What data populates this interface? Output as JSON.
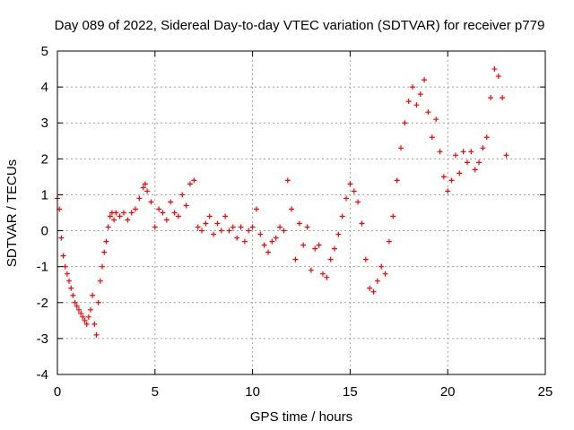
{
  "chart_data": {
    "type": "scatter",
    "title": "Day 089 of 2022, Sidereal Day-to-day VTEC variation (SDTVAR) for receiver p779",
    "xlabel": "GPS time / hours",
    "ylabel": "SDTVAR / TECUs",
    "xlim": [
      0,
      25
    ],
    "ylim": [
      -4,
      5
    ],
    "xticks": [
      0,
      5,
      10,
      15,
      20,
      25
    ],
    "yticks": [
      -4,
      -3,
      -2,
      -1,
      0,
      1,
      2,
      3,
      4,
      5
    ],
    "xtick_labels": [
      "0",
      "5",
      "10",
      "15",
      "20",
      "25"
    ],
    "ytick_labels": [
      "-4",
      "-3",
      "-2",
      "-1",
      "0",
      "1",
      "2",
      "3",
      "4",
      "5"
    ],
    "grid": true,
    "legend": "none",
    "marker": "+",
    "color": "#ff0000",
    "series": [
      {
        "name": "SDTVAR",
        "x": [
          0.0,
          0.1,
          0.2,
          0.3,
          0.4,
          0.5,
          0.6,
          0.7,
          0.8,
          0.9,
          1.0,
          1.1,
          1.2,
          1.3,
          1.4,
          1.5,
          1.6,
          1.7,
          1.8,
          1.9,
          2.0,
          2.1,
          2.2,
          2.3,
          2.4,
          2.5,
          2.6,
          2.7,
          2.8,
          2.9,
          3.0,
          3.2,
          3.4,
          3.6,
          3.8,
          4.0,
          4.2,
          4.4,
          4.5,
          4.6,
          4.8,
          5.0,
          5.2,
          5.4,
          5.6,
          5.8,
          6.0,
          6.2,
          6.4,
          6.6,
          6.8,
          7.0,
          7.2,
          7.4,
          7.6,
          7.8,
          8.0,
          8.2,
          8.4,
          8.6,
          8.8,
          9.0,
          9.2,
          9.4,
          9.6,
          9.8,
          10.0,
          10.2,
          10.4,
          10.6,
          10.8,
          11.0,
          11.2,
          11.4,
          11.6,
          11.8,
          12.0,
          12.2,
          12.4,
          12.6,
          12.8,
          13.0,
          13.2,
          13.4,
          13.6,
          13.8,
          14.0,
          14.2,
          14.4,
          14.6,
          14.8,
          15.0,
          15.2,
          15.4,
          15.6,
          15.8,
          16.0,
          16.2,
          16.4,
          16.6,
          16.8,
          17.0,
          17.2,
          17.4,
          17.6,
          17.8,
          18.0,
          18.2,
          18.4,
          18.6,
          18.8,
          19.0,
          19.2,
          19.4,
          19.6,
          19.8,
          20.0,
          20.2,
          20.4,
          20.6,
          20.8,
          21.0,
          21.2,
          21.4,
          21.6,
          21.8,
          22.0,
          22.2,
          22.4,
          22.6,
          22.8,
          23.0
        ],
        "y": [
          0.9,
          0.6,
          -0.2,
          -0.7,
          -1.0,
          -1.2,
          -1.4,
          -1.6,
          -1.8,
          -2.0,
          -2.1,
          -2.2,
          -2.3,
          -2.4,
          -2.5,
          -2.6,
          -2.4,
          -2.2,
          -1.8,
          -2.6,
          -2.9,
          -2.0,
          -1.4,
          -1.0,
          -0.6,
          -0.3,
          0.1,
          0.4,
          0.5,
          0.3,
          0.5,
          0.4,
          0.5,
          0.3,
          0.5,
          0.6,
          0.9,
          1.2,
          1.3,
          1.1,
          0.8,
          0.1,
          0.6,
          0.5,
          0.3,
          0.8,
          0.5,
          0.4,
          1.0,
          0.7,
          1.3,
          1.4,
          0.1,
          0.0,
          0.2,
          0.4,
          -0.1,
          0.2,
          0.0,
          0.4,
          0.0,
          0.1,
          -0.2,
          0.1,
          -0.3,
          0.0,
          0.1,
          0.6,
          -0.1,
          -0.4,
          -0.6,
          -0.3,
          -0.2,
          0.1,
          0.0,
          1.4,
          0.6,
          -0.8,
          0.2,
          -0.4,
          0.1,
          -1.1,
          -0.5,
          -0.4,
          -1.2,
          -1.3,
          -0.8,
          -0.5,
          -0.1,
          0.4,
          0.9,
          1.3,
          1.1,
          0.8,
          0.2,
          -0.8,
          -1.6,
          -1.7,
          -1.4,
          -1.0,
          -1.2,
          -0.3,
          0.4,
          1.4,
          2.3,
          3.0,
          3.6,
          4.0,
          3.5,
          3.8,
          4.2,
          3.3,
          2.6,
          3.1,
          2.2,
          1.5,
          1.1,
          1.4,
          2.1,
          1.6,
          2.2,
          1.9,
          2.2,
          1.7,
          1.9,
          2.3,
          2.6,
          3.7,
          4.5,
          4.3,
          3.7,
          2.1
        ]
      }
    ]
  }
}
